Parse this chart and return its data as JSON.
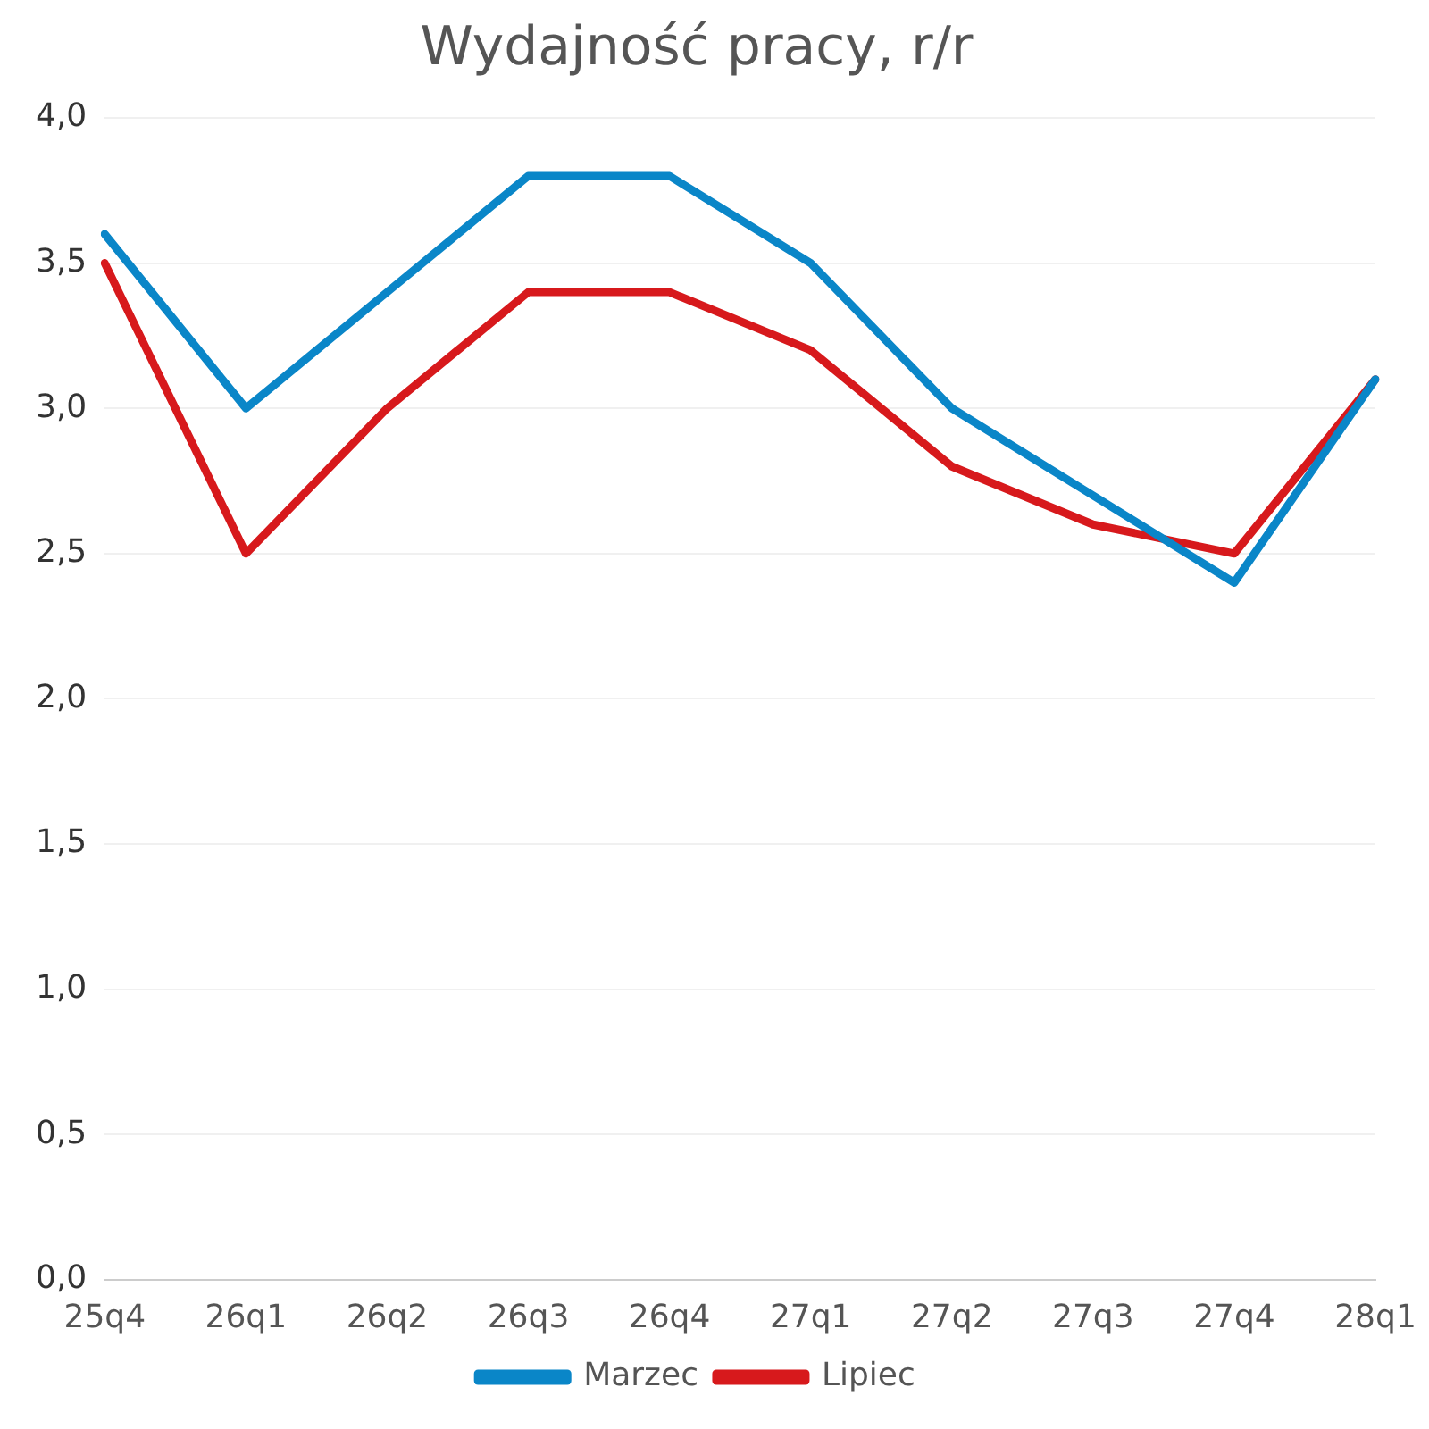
{
  "chart_data": {
    "type": "line",
    "title": "Wydajność pracy, r/r",
    "categories": [
      "25q4",
      "26q1",
      "26q2",
      "26q3",
      "26q4",
      "27q1",
      "27q2",
      "27q3",
      "27q4",
      "28q1"
    ],
    "series": [
      {
        "name": "Marzec",
        "color": "#0a86c8",
        "values": [
          3.6,
          3.0,
          3.4,
          3.8,
          3.8,
          3.5,
          3.0,
          2.7,
          2.4,
          3.1
        ]
      },
      {
        "name": "Lipiec",
        "color": "#d7191c",
        "values": [
          3.5,
          2.5,
          3.0,
          3.4,
          3.4,
          3.2,
          2.8,
          2.6,
          2.5,
          3.1
        ]
      }
    ],
    "ylim": [
      0,
      4
    ],
    "yticks": [
      {
        "value": 0,
        "label": "0,0"
      },
      {
        "value": 0.5,
        "label": "0,5"
      },
      {
        "value": 1,
        "label": "1,0"
      },
      {
        "value": 1.5,
        "label": "1,5"
      },
      {
        "value": 2,
        "label": "2,0"
      },
      {
        "value": 2.5,
        "label": "2,5"
      },
      {
        "value": 3,
        "label": "3,0"
      },
      {
        "value": 3.5,
        "label": "3,5"
      },
      {
        "value": 4,
        "label": "4,0"
      }
    ],
    "grid": "y",
    "legend": "bottom",
    "marker": "none",
    "line_style": "solid"
  }
}
